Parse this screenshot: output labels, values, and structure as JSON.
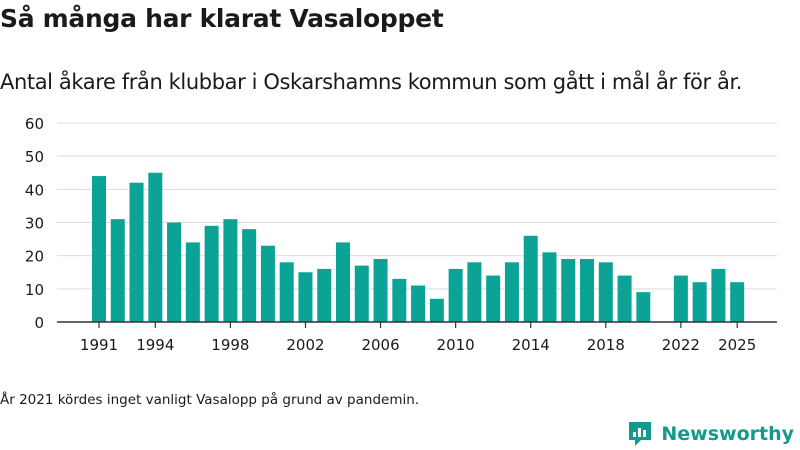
{
  "header": {
    "title": "Så många har klarat Vasaloppet",
    "subtitle": "Antal åkare från klubbar i Oskarshamns kommun som gått i mål år för år."
  },
  "footer": {
    "note": "År 2021 kördes inget vanligt Vasalopp på grund av pandemin.",
    "brand_name": "Newsworthy",
    "brand_icon": "newsworthy-logo-icon"
  },
  "colors": {
    "bar": "#0aa396",
    "grid": "#dcdcdc",
    "axis": "#333333",
    "text": "#1a1a1a",
    "brand": "#149a8c"
  },
  "chart_data": {
    "type": "bar",
    "x": [
      1991,
      1992,
      1993,
      1994,
      1995,
      1996,
      1997,
      1998,
      1999,
      2000,
      2001,
      2002,
      2003,
      2004,
      2005,
      2006,
      2007,
      2008,
      2009,
      2010,
      2011,
      2012,
      2013,
      2014,
      2015,
      2016,
      2017,
      2018,
      2019,
      2020,
      2021,
      2022,
      2023,
      2024,
      2025
    ],
    "values": [
      44,
      31,
      42,
      45,
      30,
      24,
      29,
      31,
      28,
      23,
      18,
      15,
      16,
      24,
      17,
      19,
      13,
      11,
      7,
      16,
      18,
      14,
      18,
      26,
      21,
      19,
      19,
      18,
      14,
      9,
      null,
      14,
      12,
      16,
      12
    ],
    "x_tick_labels": [
      "1991",
      "1994",
      "1998",
      "2002",
      "2006",
      "2010",
      "2014",
      "2018",
      "2022",
      "2025"
    ],
    "y_ticks": [
      0,
      10,
      20,
      30,
      40,
      50,
      60
    ],
    "ylim": [
      0,
      60
    ],
    "grid": true,
    "xlabel": "",
    "ylabel": ""
  }
}
